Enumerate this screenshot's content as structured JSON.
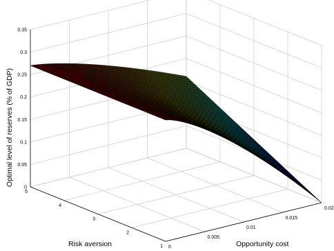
{
  "chart_data": {
    "type": "surface3d",
    "zlabel": "Optimal level of reserves (% of GDP)",
    "xlabel": "Opportunity cost",
    "ylabel": "Risk aversion",
    "x_ticks": [
      "0",
      "0.005",
      "0.01",
      "0.015",
      "0.02"
    ],
    "y_ticks": [
      "1",
      "2",
      "3",
      "4",
      "5"
    ],
    "z_ticks": [
      "0",
      "0.05",
      "0.1",
      "0.15",
      "0.2",
      "0.25",
      "0.3",
      "0.35"
    ],
    "xlim": [
      0,
      0.02
    ],
    "ylim": [
      1,
      5
    ],
    "zlim": [
      0,
      0.35
    ],
    "grid": true,
    "colormap": "jet",
    "surface_description": "Reserves equal about 0.27 at zero opportunity cost for all risk aversion levels, declining with opportunity cost to near 0 at 0.02 for risk aversion 1, and about 0.16 at 0.02 for risk aversion 5.",
    "corner_values": [
      {
        "x": 0,
        "y": 1,
        "z": 0.27
      },
      {
        "x": 0,
        "y": 5,
        "z": 0.27
      },
      {
        "x": 0.02,
        "y": 5,
        "z": 0.16
      },
      {
        "x": 0.02,
        "y": 1,
        "z": 0.0
      }
    ]
  }
}
